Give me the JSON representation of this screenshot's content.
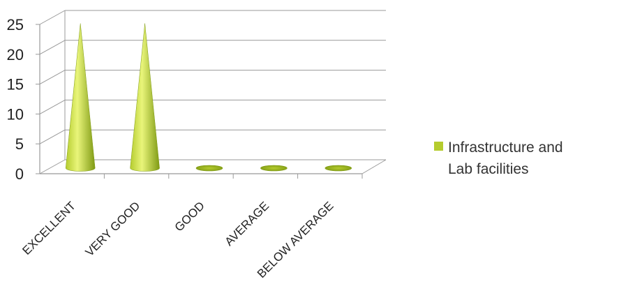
{
  "chart_data": {
    "type": "bar",
    "subtype": "3d-cone",
    "categories": [
      "EXCELLENT",
      "VERY GOOD",
      "GOOD",
      "AVERAGE",
      "BELOW AVERAGE"
    ],
    "series": [
      {
        "name": "Infrastructure and Lab facilities",
        "values": [
          24,
          24,
          0,
          0,
          0
        ]
      }
    ],
    "ylim": [
      0,
      25
    ],
    "yticks": [
      0,
      5,
      10,
      15,
      20,
      25
    ],
    "grid": true,
    "legend_position": "right",
    "colors": {
      "series": "#b5cc2e",
      "series_light": "#e9f57a",
      "series_dark": "#7f9a14",
      "grid": "#999999"
    }
  }
}
